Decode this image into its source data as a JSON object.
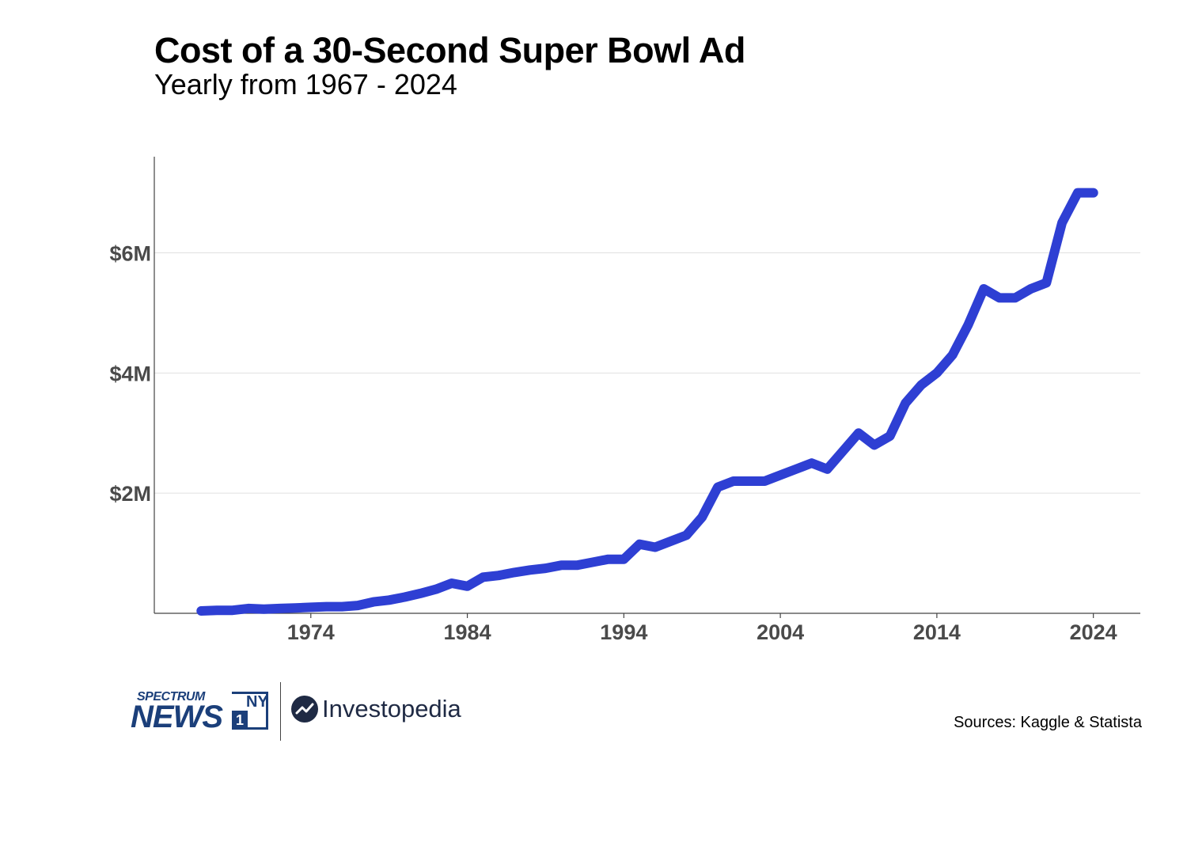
{
  "header": {
    "title": "Cost of a 30-Second Super Bowl Ad",
    "subtitle": "Yearly from 1967 - 2024"
  },
  "colors": {
    "line": "#2e3fd3",
    "axis": "#444444",
    "grid": "#e0e0e0",
    "tick_text": "#4a4a4a"
  },
  "chart_data": {
    "type": "line",
    "title": "Cost of a 30-Second Super Bowl Ad",
    "subtitle": "Yearly from 1967 - 2024",
    "xlabel": "",
    "ylabel": "",
    "xlim": [
      1964,
      2027
    ],
    "ylim": [
      0,
      7.6
    ],
    "x_ticks": [
      1974,
      1984,
      1994,
      2004,
      2014,
      2024
    ],
    "x_tick_labels": [
      "1974",
      "1984",
      "1994",
      "2004",
      "2014",
      "2024"
    ],
    "y_ticks": [
      2,
      4,
      6
    ],
    "y_tick_labels": [
      "$2M",
      "$4M",
      "$6M"
    ],
    "grid": "horizontal",
    "units": "millions USD",
    "series": [
      {
        "name": "Cost of 30-second ad",
        "x": [
          1967,
          1968,
          1969,
          1970,
          1971,
          1972,
          1973,
          1974,
          1975,
          1976,
          1977,
          1978,
          1979,
          1980,
          1981,
          1982,
          1983,
          1984,
          1985,
          1986,
          1987,
          1988,
          1989,
          1990,
          1991,
          1992,
          1993,
          1994,
          1995,
          1996,
          1997,
          1998,
          1999,
          2000,
          2001,
          2002,
          2003,
          2004,
          2005,
          2006,
          2007,
          2008,
          2009,
          2010,
          2011,
          2012,
          2013,
          2014,
          2015,
          2016,
          2017,
          2018,
          2019,
          2020,
          2021,
          2022,
          2023,
          2024
        ],
        "values": [
          0.04,
          0.05,
          0.05,
          0.08,
          0.07,
          0.08,
          0.09,
          0.1,
          0.11,
          0.11,
          0.13,
          0.19,
          0.22,
          0.27,
          0.33,
          0.4,
          0.5,
          0.45,
          0.6,
          0.63,
          0.68,
          0.72,
          0.75,
          0.8,
          0.8,
          0.85,
          0.9,
          0.9,
          1.15,
          1.1,
          1.2,
          1.3,
          1.6,
          2.1,
          2.2,
          2.2,
          2.2,
          2.3,
          2.4,
          2.5,
          2.4,
          2.7,
          3.0,
          2.8,
          2.95,
          3.5,
          3.8,
          4.0,
          4.3,
          4.8,
          5.4,
          5.25,
          5.25,
          5.4,
          5.5,
          6.5,
          7.0,
          7.0
        ]
      }
    ]
  },
  "footer": {
    "spectrum_top": "SPECTRUM",
    "spectrum_main": "NEWS",
    "ny_text": "NY",
    "one_text": "1",
    "investopedia": "Investopedia",
    "sources": "Sources: Kaggle & Statista"
  }
}
